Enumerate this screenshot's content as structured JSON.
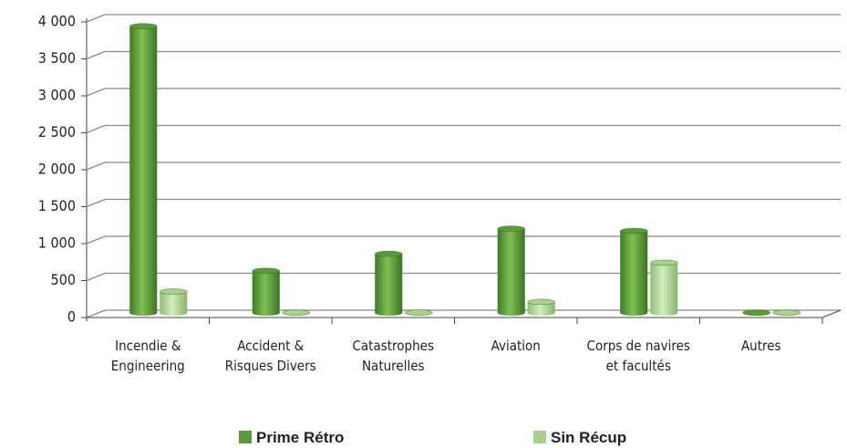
{
  "chart_data": {
    "type": "bar",
    "categories": [
      "Incendie & Engineering",
      "Accident & Risques Divers",
      "Catastrophes Naturelles",
      "Aviation",
      "Corps de navires et facultés",
      "Autres"
    ],
    "series": [
      {
        "name": "Prime Rétro",
        "color": "#5a9a3a",
        "values": [
          3880,
          570,
          800,
          1140,
          1110,
          5
        ]
      },
      {
        "name": "Sin Récup",
        "color": "#a9d18e",
        "values": [
          290,
          5,
          5,
          150,
          680,
          5
        ]
      }
    ],
    "ylim": [
      0,
      4000
    ],
    "yticks": [
      0,
      500,
      {
        "value": 1000,
        "label": "1 000"
      },
      {
        "value": 1500,
        "label": "1 500"
      },
      {
        "value": 2000,
        "label": "2 000"
      },
      {
        "value": 2500,
        "label": "2 500"
      },
      {
        "value": 3000,
        "label": "3 000"
      },
      {
        "value": 3500,
        "label": "3 500"
      },
      {
        "value": 4000,
        "label": "4 000"
      }
    ],
    "grid": true,
    "legend": "bottom"
  }
}
